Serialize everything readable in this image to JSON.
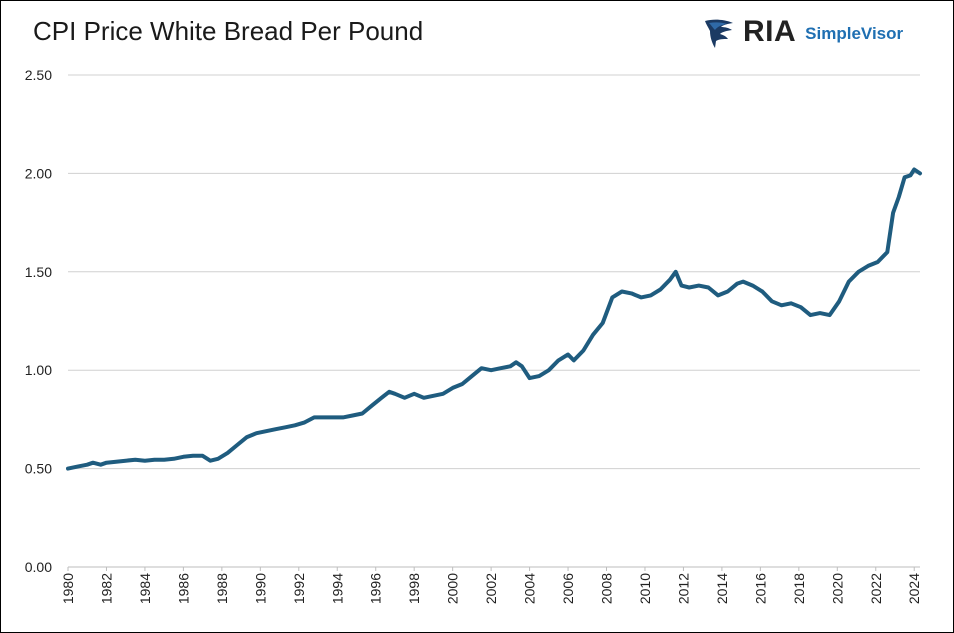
{
  "header": {
    "title": "CPI Price White Bread Per Pound"
  },
  "logo": {
    "brand": "RIA",
    "product": "SimpleVisor",
    "icon": "eagle-icon"
  },
  "colors": {
    "line": "#1f5c7f",
    "grid": "#d0d0d0",
    "brand_blue": "#1f6fb2",
    "eagle_dark": "#1b3a63"
  },
  "chart_data": {
    "type": "line",
    "title": "CPI Price White Bread Per Pound",
    "xlabel": "",
    "ylabel": "",
    "xlim": [
      1980,
      2024.3
    ],
    "ylim": [
      0,
      2.5
    ],
    "yticks": [
      "0.00",
      "0.50",
      "1.00",
      "1.50",
      "2.00",
      "2.50"
    ],
    "xticks": [
      "1980",
      "1982",
      "1984",
      "1986",
      "1988",
      "1990",
      "1992",
      "1994",
      "1996",
      "1998",
      "2000",
      "2002",
      "2004",
      "2006",
      "2008",
      "2010",
      "2012",
      "2014",
      "2016",
      "2018",
      "2020",
      "2022",
      "2024"
    ],
    "grid": true,
    "legend": "none",
    "series": [
      {
        "x": [
          1980,
          1980.5,
          1981,
          1981.3,
          1981.7,
          1982,
          1982.5,
          1983,
          1983.5,
          1984,
          1984.5,
          1985,
          1985.5,
          1986,
          1986.5,
          1987,
          1987.4,
          1987.8,
          1988.3,
          1988.8,
          1989.3,
          1989.8,
          1990.3,
          1990.8,
          1991.3,
          1991.8,
          1992.3,
          1992.8,
          1993.3,
          1993.8,
          1994.3,
          1994.8,
          1995.3,
          1995.8,
          1996.3,
          1996.7,
          1997,
          1997.5,
          1998,
          1998.5,
          1999,
          1999.5,
          2000,
          2000.5,
          2001,
          2001.5,
          2002,
          2002.5,
          2003,
          2003.3,
          2003.6,
          2004,
          2004.5,
          2005,
          2005.5,
          2006,
          2006.3,
          2006.8,
          2007.3,
          2007.8,
          2008.3,
          2008.8,
          2009.3,
          2009.8,
          2010.3,
          2010.8,
          2011.3,
          2011.6,
          2011.9,
          2012.3,
          2012.8,
          2013.3,
          2013.8,
          2014.3,
          2014.8,
          2015.1,
          2015.6,
          2016.1,
          2016.6,
          2017.1,
          2017.6,
          2018.1,
          2018.6,
          2019.1,
          2019.6,
          2020.1,
          2020.6,
          2021.1,
          2021.6,
          2022.1,
          2022.6,
          2022.9,
          2023.2,
          2023.5,
          2023.8,
          2024.0,
          2024.3
        ],
        "values": [
          0.5,
          0.51,
          0.52,
          0.53,
          0.52,
          0.53,
          0.535,
          0.54,
          0.545,
          0.54,
          0.545,
          0.545,
          0.55,
          0.56,
          0.565,
          0.565,
          0.54,
          0.55,
          0.58,
          0.62,
          0.66,
          0.68,
          0.69,
          0.7,
          0.71,
          0.72,
          0.735,
          0.76,
          0.76,
          0.76,
          0.76,
          0.77,
          0.78,
          0.82,
          0.86,
          0.89,
          0.88,
          0.86,
          0.88,
          0.86,
          0.87,
          0.88,
          0.91,
          0.93,
          0.97,
          1.01,
          1.0,
          1.01,
          1.02,
          1.04,
          1.02,
          0.96,
          0.97,
          1.0,
          1.05,
          1.08,
          1.05,
          1.1,
          1.18,
          1.24,
          1.37,
          1.4,
          1.39,
          1.37,
          1.38,
          1.41,
          1.46,
          1.5,
          1.43,
          1.42,
          1.43,
          1.42,
          1.38,
          1.4,
          1.44,
          1.45,
          1.43,
          1.4,
          1.35,
          1.33,
          1.34,
          1.32,
          1.28,
          1.29,
          1.28,
          1.35,
          1.45,
          1.5,
          1.53,
          1.55,
          1.6,
          1.8,
          1.88,
          1.98,
          1.99,
          2.02,
          2.0
        ]
      }
    ]
  }
}
